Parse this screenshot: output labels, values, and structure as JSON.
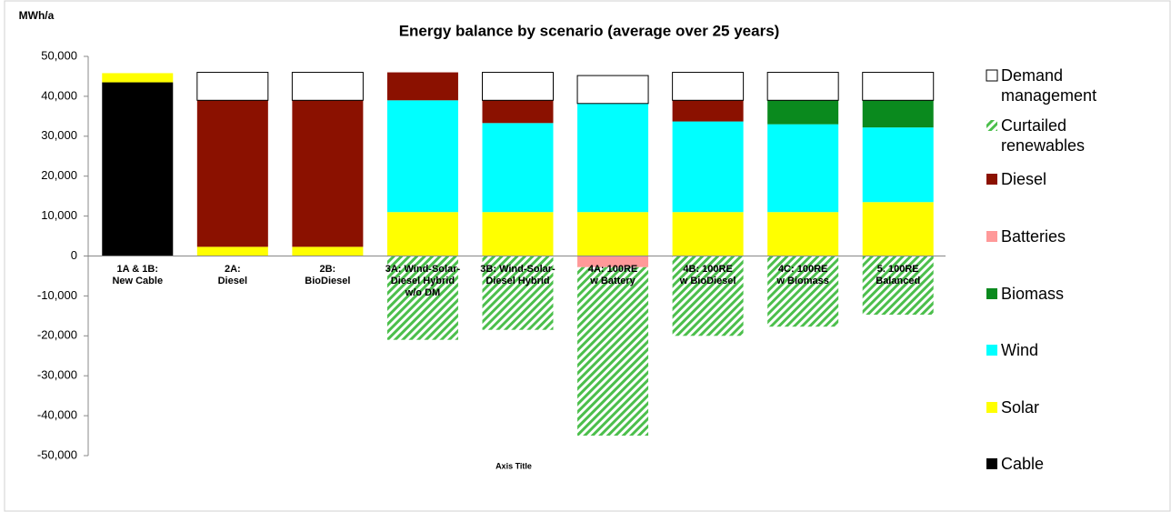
{
  "chart_data": {
    "type": "stacked-bar",
    "title": "Energy balance by scenario (average over 25 years)",
    "y_label": "MWh/a",
    "x_label": "Axis Title",
    "categories": [
      "1A & 1B:\nNew Cable",
      "2A:\nDiesel",
      "2B:\nBioDiesel",
      "3A: Wind-Solar-\nDiesel Hybrid\nw/o DM",
      "3B: Wind-Solar-\nDiesel Hybrid",
      "4A: 100RE\nw Battery",
      "4B: 100RE\nw BioDiesel",
      "4C: 100RE\nw Biomass",
      "5. 100RE\nBalanced"
    ],
    "series": [
      {
        "name": "Cable",
        "color": "#000000",
        "values": [
          43500,
          null,
          null,
          null,
          null,
          null,
          null,
          null,
          null
        ]
      },
      {
        "name": "Solar",
        "color": "#ffff00",
        "values": [
          2300,
          2300,
          2300,
          11000,
          11000,
          11000,
          11000,
          11000,
          13500
        ]
      },
      {
        "name": "Wind",
        "color": "#00ffff",
        "values": [
          null,
          null,
          null,
          28000,
          22300,
          27200,
          22700,
          22000,
          18700
        ]
      },
      {
        "name": "Biomass",
        "color": "#0a8a1e",
        "values": [
          null,
          null,
          null,
          null,
          null,
          null,
          null,
          6000,
          6800
        ]
      },
      {
        "name": "Batteries",
        "color": "#ff9999",
        "values": [
          null,
          null,
          null,
          null,
          null,
          -2800,
          null,
          null,
          null
        ]
      },
      {
        "name": "Diesel",
        "color": "#8b1100",
        "values": [
          null,
          36700,
          36700,
          7000,
          5700,
          null,
          5300,
          null,
          null
        ]
      },
      {
        "name": "Curtailed\nrenewables",
        "color": "#4cbf4c",
        "values": [
          null,
          null,
          null,
          -21000,
          -18500,
          -42200,
          -20000,
          -17700,
          -14700
        ]
      },
      {
        "name": "Demand\nmanagement",
        "color": "#ffffff",
        "values": [
          null,
          7000,
          7000,
          null,
          7000,
          7000,
          7000,
          7000,
          7000
        ]
      }
    ],
    "ylim": [
      -50000,
      50000
    ],
    "yticks": [
      {
        "value": -50000,
        "label": "-50,000"
      },
      {
        "value": -40000,
        "label": "-40,000"
      },
      {
        "value": -30000,
        "label": "-30,000"
      },
      {
        "value": -20000,
        "label": "-20,000"
      },
      {
        "value": -10000,
        "label": "-10,000"
      },
      0,
      {
        "value": 10000,
        "label": "10,000"
      },
      {
        "value": 20000,
        "label": "20,000"
      },
      {
        "value": 30000,
        "label": "30,000"
      },
      {
        "value": 40000,
        "label": "40,000"
      },
      {
        "value": 50000,
        "label": "50,000"
      }
    ],
    "grid": false
  }
}
